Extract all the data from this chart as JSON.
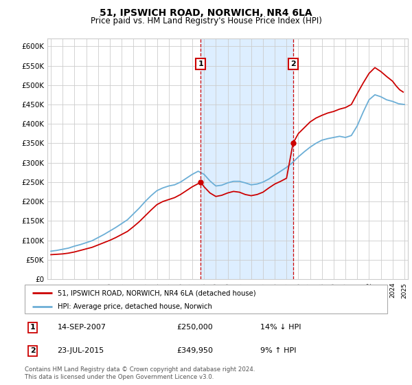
{
  "title": "51, IPSWICH ROAD, NORWICH, NR4 6LA",
  "subtitle": "Price paid vs. HM Land Registry's House Price Index (HPI)",
  "title_fontsize": 10,
  "subtitle_fontsize": 8.5,
  "ylim": [
    0,
    620000
  ],
  "yticks": [
    0,
    50000,
    100000,
    150000,
    200000,
    250000,
    300000,
    350000,
    400000,
    450000,
    500000,
    550000,
    600000
  ],
  "ytick_labels": [
    "£0",
    "£50K",
    "£100K",
    "£150K",
    "£200K",
    "£250K",
    "£300K",
    "£350K",
    "£400K",
    "£450K",
    "£500K",
    "£550K",
    "£600K"
  ],
  "xlim_start": 1994.7,
  "xlim_end": 2025.3,
  "sale1_x": 2007.71,
  "sale1_y": 250000,
  "sale1_label": "1",
  "sale1_date": "14-SEP-2007",
  "sale1_price": "£250,000",
  "sale1_hpi": "14% ↓ HPI",
  "sale2_x": 2015.55,
  "sale2_y": 349950,
  "sale2_label": "2",
  "sale2_date": "23-JUL-2015",
  "sale2_price": "£349,950",
  "sale2_hpi": "9% ↑ HPI",
  "red_color": "#cc0000",
  "blue_color": "#6baed6",
  "shade_color": "#ddeeff",
  "grid_color": "#cccccc",
  "bg_color": "#ffffff",
  "legend_label_red": "51, IPSWICH ROAD, NORWICH, NR4 6LA (detached house)",
  "legend_label_blue": "HPI: Average price, detached house, Norwich",
  "footer": "Contains HM Land Registry data © Crown copyright and database right 2024.\nThis data is licensed under the Open Government Licence v3.0.",
  "years_hpi": [
    1995.0,
    1995.5,
    1996.0,
    1996.5,
    1997.0,
    1997.5,
    1998.0,
    1998.5,
    1999.0,
    1999.5,
    2000.0,
    2000.5,
    2001.0,
    2001.5,
    2002.0,
    2002.5,
    2003.0,
    2003.5,
    2004.0,
    2004.5,
    2005.0,
    2005.5,
    2006.0,
    2006.5,
    2007.0,
    2007.5,
    2008.0,
    2008.5,
    2009.0,
    2009.5,
    2010.0,
    2010.5,
    2011.0,
    2011.5,
    2012.0,
    2012.5,
    2013.0,
    2013.5,
    2014.0,
    2014.5,
    2015.0,
    2015.5,
    2016.0,
    2016.5,
    2017.0,
    2017.5,
    2018.0,
    2018.5,
    2019.0,
    2019.5,
    2020.0,
    2020.5,
    2021.0,
    2021.5,
    2022.0,
    2022.5,
    2023.0,
    2023.5,
    2024.0,
    2024.5,
    2025.0
  ],
  "hpi_values": [
    72000,
    74000,
    77000,
    80000,
    85000,
    89000,
    94000,
    99000,
    107000,
    115000,
    124000,
    133000,
    143000,
    153000,
    168000,
    183000,
    200000,
    215000,
    228000,
    235000,
    240000,
    243000,
    250000,
    260000,
    270000,
    278000,
    270000,
    253000,
    240000,
    242000,
    248000,
    252000,
    252000,
    248000,
    243000,
    245000,
    250000,
    258000,
    268000,
    278000,
    288000,
    300000,
    315000,
    328000,
    340000,
    350000,
    358000,
    362000,
    365000,
    368000,
    365000,
    370000,
    395000,
    430000,
    462000,
    475000,
    470000,
    462000,
    458000,
    452000,
    450000
  ],
  "years_red": [
    1995.0,
    1995.5,
    1996.0,
    1996.5,
    1997.0,
    1997.5,
    1998.0,
    1998.5,
    1999.0,
    1999.5,
    2000.0,
    2000.5,
    2001.0,
    2001.5,
    2002.0,
    2002.5,
    2003.0,
    2003.5,
    2004.0,
    2004.5,
    2005.0,
    2005.5,
    2006.0,
    2006.5,
    2007.0,
    2007.5,
    2007.71,
    2008.0,
    2008.5,
    2009.0,
    2009.5,
    2010.0,
    2010.5,
    2011.0,
    2011.5,
    2012.0,
    2012.5,
    2013.0,
    2013.5,
    2014.0,
    2014.5,
    2015.0,
    2015.55,
    2016.0,
    2016.5,
    2017.0,
    2017.5,
    2018.0,
    2018.5,
    2019.0,
    2019.5,
    2020.0,
    2020.5,
    2021.0,
    2021.5,
    2022.0,
    2022.5,
    2023.0,
    2023.5,
    2024.0,
    2024.3,
    2024.6,
    2024.9
  ],
  "red_values": [
    63000,
    64000,
    65000,
    67000,
    70000,
    74000,
    78000,
    82000,
    88000,
    94000,
    100000,
    107000,
    115000,
    123000,
    135000,
    148000,
    163000,
    178000,
    192000,
    200000,
    205000,
    210000,
    218000,
    228000,
    238000,
    246000,
    250000,
    238000,
    222000,
    213000,
    216000,
    222000,
    226000,
    224000,
    218000,
    215000,
    218000,
    224000,
    235000,
    245000,
    252000,
    260000,
    349950,
    375000,
    390000,
    405000,
    415000,
    422000,
    428000,
    432000,
    438000,
    442000,
    450000,
    478000,
    505000,
    530000,
    545000,
    535000,
    522000,
    510000,
    498000,
    488000,
    482000
  ]
}
